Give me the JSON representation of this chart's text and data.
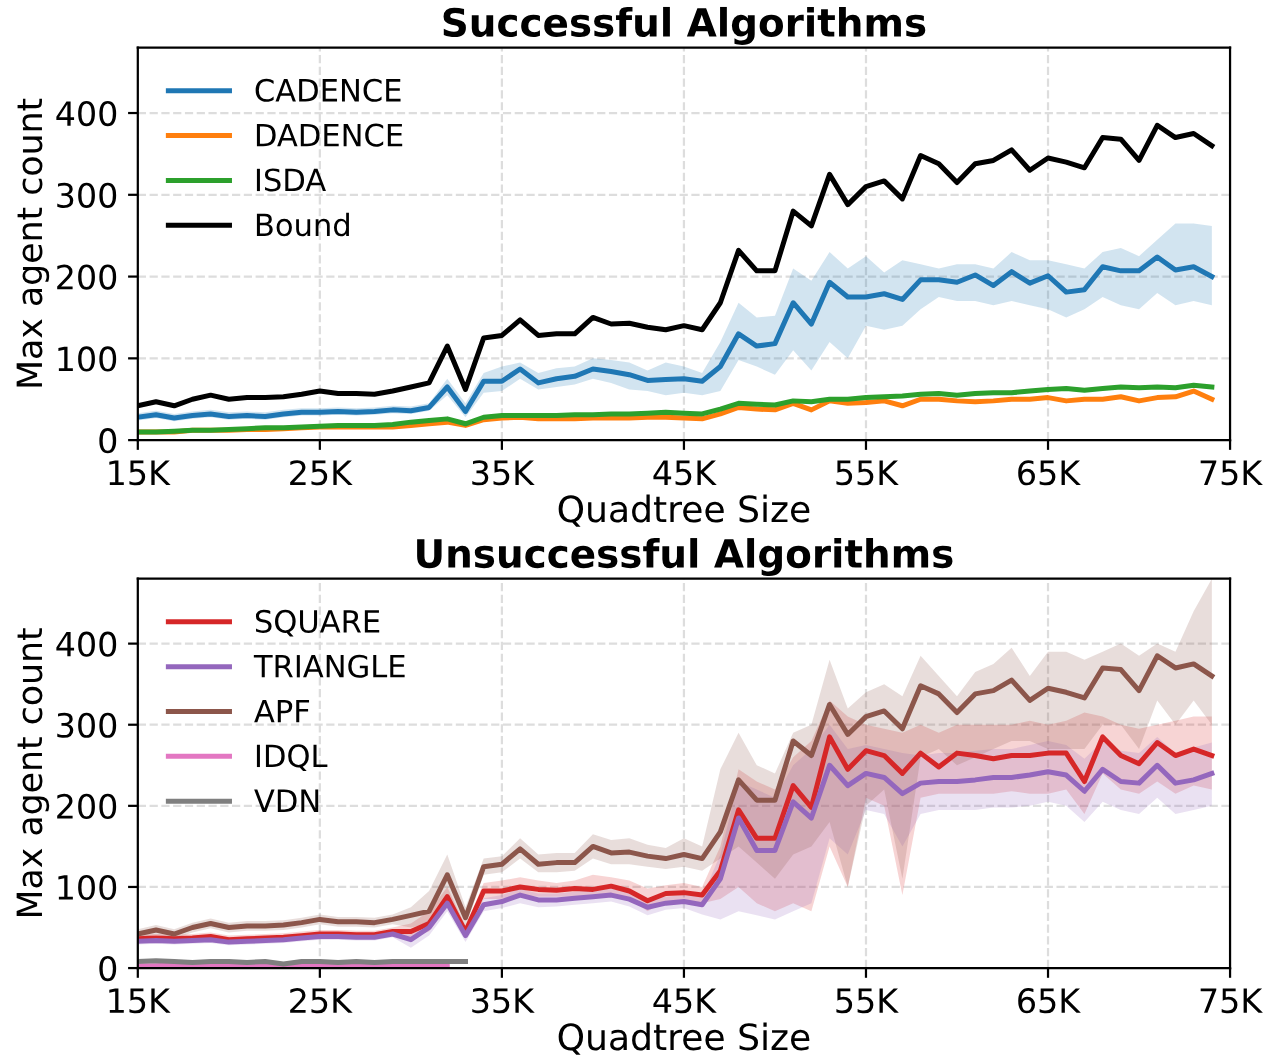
{
  "chart_data": [
    {
      "type": "line",
      "title": "Successful Algorithms",
      "xlabel": "Quadtree Size",
      "ylabel": "Max agent count",
      "x": [
        15000,
        16000,
        17000,
        18000,
        19000,
        20000,
        21000,
        22000,
        23000,
        24000,
        25000,
        26000,
        27000,
        28000,
        29000,
        30000,
        31000,
        32000,
        33000,
        34000,
        35000,
        36000,
        37000,
        38000,
        39000,
        40000,
        41000,
        42000,
        43000,
        44000,
        45000,
        46000,
        47000,
        48000,
        49000,
        50000,
        51000,
        52000,
        53000,
        54000,
        55000,
        56000,
        57000,
        58000,
        59000,
        60000,
        61000,
        62000,
        63000,
        64000,
        65000,
        66000,
        67000,
        68000,
        69000,
        70000,
        71000,
        72000,
        73000,
        74000
      ],
      "xlim": [
        15000,
        75000
      ],
      "xticks": [
        {
          "value": 15000,
          "label": "15K"
        },
        {
          "value": 25000,
          "label": "25K"
        },
        {
          "value": 35000,
          "label": "35K"
        },
        {
          "value": 45000,
          "label": "45K"
        },
        {
          "value": 55000,
          "label": "55K"
        },
        {
          "value": 65000,
          "label": "65K"
        },
        {
          "value": 75000,
          "label": "75K"
        }
      ],
      "ylim": [
        0,
        480
      ],
      "yticks": [
        0,
        100,
        200,
        300,
        400
      ],
      "grid": true,
      "legend": "top left",
      "line_style": "solid",
      "marker": "none",
      "series": [
        {
          "name": "CADENCE",
          "color": "#1f77b4",
          "values": [
            28,
            31,
            27,
            30,
            32,
            29,
            30,
            29,
            32,
            34,
            34,
            35,
            34,
            35,
            37,
            36,
            40,
            65,
            35,
            72,
            72,
            87,
            70,
            75,
            78,
            87,
            84,
            80,
            73,
            74,
            75,
            72,
            90,
            130,
            115,
            118,
            168,
            142,
            193,
            175,
            175,
            179,
            172,
            196,
            196,
            193,
            202,
            189,
            206,
            192,
            201,
            181,
            184,
            212,
            207,
            207,
            224,
            208,
            212,
            200
          ],
          "lower": [
            24,
            27,
            23,
            26,
            28,
            25,
            26,
            25,
            28,
            30,
            30,
            31,
            30,
            31,
            33,
            32,
            36,
            55,
            28,
            58,
            60,
            75,
            62,
            65,
            68,
            75,
            70,
            62,
            60,
            55,
            58,
            55,
            60,
            98,
            90,
            80,
            110,
            85,
            120,
            100,
            140,
            135,
            140,
            160,
            175,
            170,
            170,
            165,
            170,
            165,
            160,
            150,
            160,
            175,
            165,
            160,
            180,
            165,
            170,
            165
          ],
          "upper": [
            33,
            36,
            32,
            35,
            37,
            34,
            35,
            34,
            37,
            39,
            39,
            40,
            39,
            40,
            42,
            41,
            45,
            75,
            45,
            82,
            90,
            95,
            82,
            88,
            90,
            100,
            98,
            95,
            85,
            95,
            90,
            82,
            120,
            168,
            150,
            152,
            210,
            195,
            230,
            210,
            225,
            205,
            220,
            215,
            210,
            215,
            215,
            210,
            230,
            220,
            220,
            215,
            210,
            230,
            235,
            225,
            245,
            265,
            265,
            262
          ]
        },
        {
          "name": "DADENCE",
          "color": "#ff7f0e",
          "values": [
            10,
            10,
            10,
            12,
            12,
            12,
            13,
            13,
            14,
            15,
            16,
            16,
            16,
            16,
            16,
            18,
            20,
            22,
            18,
            25,
            27,
            28,
            26,
            26,
            26,
            27,
            27,
            27,
            28,
            28,
            27,
            26,
            32,
            40,
            38,
            37,
            45,
            37,
            48,
            45,
            46,
            48,
            42,
            50,
            50,
            48,
            47,
            48,
            50,
            50,
            52,
            48,
            50,
            50,
            53,
            48,
            52,
            53,
            60,
            50
          ]
        },
        {
          "name": "ISDA",
          "color": "#2ca02c",
          "values": [
            10,
            10,
            11,
            12,
            12,
            13,
            14,
            15,
            15,
            16,
            17,
            18,
            18,
            18,
            19,
            22,
            24,
            26,
            20,
            28,
            30,
            30,
            30,
            30,
            31,
            31,
            32,
            32,
            33,
            34,
            33,
            32,
            38,
            45,
            44,
            43,
            48,
            47,
            50,
            50,
            52,
            53,
            54,
            56,
            57,
            55,
            57,
            58,
            58,
            60,
            62,
            63,
            61,
            63,
            65,
            64,
            65,
            64,
            67,
            65
          ]
        },
        {
          "name": "Bound",
          "color": "#000000",
          "values": [
            42,
            47,
            42,
            50,
            55,
            50,
            52,
            52,
            53,
            56,
            60,
            57,
            57,
            56,
            60,
            65,
            70,
            115,
            62,
            125,
            128,
            147,
            128,
            130,
            130,
            150,
            142,
            143,
            138,
            135,
            140,
            135,
            168,
            232,
            207,
            207,
            280,
            262,
            325,
            288,
            310,
            317,
            295,
            348,
            338,
            315,
            338,
            342,
            355,
            330,
            345,
            340,
            333,
            370,
            368,
            342,
            385,
            370,
            375,
            360
          ]
        }
      ]
    },
    {
      "type": "line",
      "title": "Unsuccessful Algorithms",
      "xlabel": "Quadtree Size",
      "ylabel": "Max agent count",
      "x": [
        15000,
        16000,
        17000,
        18000,
        19000,
        20000,
        21000,
        22000,
        23000,
        24000,
        25000,
        26000,
        27000,
        28000,
        29000,
        30000,
        31000,
        32000,
        33000,
        34000,
        35000,
        36000,
        37000,
        38000,
        39000,
        40000,
        41000,
        42000,
        43000,
        44000,
        45000,
        46000,
        47000,
        48000,
        49000,
        50000,
        51000,
        52000,
        53000,
        54000,
        55000,
        56000,
        57000,
        58000,
        59000,
        60000,
        61000,
        62000,
        63000,
        64000,
        65000,
        66000,
        67000,
        68000,
        69000,
        70000,
        71000,
        72000,
        73000,
        74000
      ],
      "xlim": [
        15000,
        75000
      ],
      "xticks": [
        {
          "value": 15000,
          "label": "15K"
        },
        {
          "value": 25000,
          "label": "25K"
        },
        {
          "value": 35000,
          "label": "35K"
        },
        {
          "value": 45000,
          "label": "45K"
        },
        {
          "value": 55000,
          "label": "55K"
        },
        {
          "value": 65000,
          "label": "65K"
        },
        {
          "value": 75000,
          "label": "75K"
        }
      ],
      "ylim": [
        0,
        480
      ],
      "yticks": [
        0,
        100,
        200,
        300,
        400
      ],
      "grid": true,
      "legend": "top left",
      "line_style": "solid",
      "marker": "none",
      "series": [
        {
          "name": "SQUARE",
          "color": "#d62728",
          "values": [
            36,
            37,
            36,
            37,
            39,
            35,
            36,
            37,
            38,
            40,
            42,
            42,
            41,
            41,
            45,
            45,
            55,
            88,
            45,
            95,
            95,
            100,
            97,
            96,
            98,
            97,
            101,
            95,
            83,
            92,
            93,
            90,
            120,
            195,
            160,
            160,
            225,
            198,
            285,
            245,
            268,
            262,
            240,
            265,
            248,
            265,
            262,
            258,
            262,
            262,
            265,
            265,
            230,
            285,
            262,
            252,
            278,
            262,
            270,
            262
          ],
          "lower": [
            31,
            32,
            31,
            32,
            34,
            30,
            31,
            32,
            33,
            35,
            37,
            37,
            36,
            36,
            40,
            38,
            45,
            75,
            38,
            85,
            85,
            90,
            88,
            88,
            88,
            88,
            90,
            85,
            70,
            82,
            82,
            80,
            85,
            100,
            80,
            70,
            80,
            70,
            150,
            100,
            210,
            200,
            90,
            210,
            215,
            215,
            215,
            215,
            218,
            215,
            215,
            220,
            190,
            240,
            220,
            215,
            230,
            215,
            225,
            220
          ],
          "upper": [
            41,
            42,
            41,
            42,
            44,
            40,
            41,
            42,
            43,
            45,
            47,
            47,
            46,
            46,
            50,
            55,
            70,
            100,
            52,
            105,
            108,
            112,
            108,
            105,
            108,
            115,
            112,
            108,
            98,
            102,
            105,
            100,
            150,
            245,
            230,
            220,
            260,
            280,
            330,
            310,
            300,
            295,
            290,
            300,
            290,
            300,
            300,
            300,
            300,
            305,
            300,
            305,
            315,
            310,
            300,
            295,
            300,
            305,
            310,
            310
          ]
        },
        {
          "name": "TRIANGLE",
          "color": "#9467bd",
          "values": [
            33,
            34,
            33,
            34,
            35,
            32,
            33,
            34,
            35,
            37,
            39,
            39,
            38,
            38,
            42,
            35,
            50,
            80,
            40,
            78,
            82,
            90,
            84,
            84,
            86,
            88,
            90,
            85,
            75,
            80,
            82,
            78,
            110,
            185,
            145,
            145,
            205,
            185,
            250,
            225,
            240,
            235,
            215,
            228,
            230,
            230,
            232,
            235,
            235,
            238,
            242,
            238,
            218,
            245,
            230,
            228,
            250,
            228,
            232,
            240
          ],
          "lower": [
            29,
            30,
            29,
            30,
            31,
            28,
            29,
            30,
            31,
            33,
            35,
            35,
            34,
            34,
            38,
            25,
            40,
            70,
            32,
            70,
            74,
            80,
            75,
            76,
            78,
            80,
            82,
            76,
            65,
            72,
            74,
            66,
            60,
            70,
            65,
            60,
            70,
            80,
            160,
            140,
            195,
            190,
            150,
            190,
            195,
            195,
            195,
            198,
            198,
            200,
            205,
            200,
            180,
            205,
            195,
            190,
            210,
            190,
            195,
            200
          ],
          "upper": [
            37,
            38,
            37,
            38,
            39,
            36,
            37,
            38,
            39,
            41,
            43,
            43,
            42,
            42,
            46,
            45,
            60,
            90,
            48,
            86,
            90,
            98,
            92,
            92,
            94,
            96,
            98,
            94,
            85,
            88,
            90,
            88,
            140,
            230,
            220,
            210,
            250,
            270,
            300,
            270,
            275,
            270,
            265,
            262,
            265,
            265,
            268,
            270,
            270,
            275,
            280,
            275,
            258,
            280,
            268,
            265,
            285,
            265,
            272,
            278
          ]
        },
        {
          "name": "APF",
          "color": "#8c564b",
          "values": [
            42,
            47,
            42,
            50,
            55,
            50,
            52,
            52,
            53,
            56,
            60,
            57,
            57,
            56,
            60,
            65,
            70,
            115,
            62,
            125,
            128,
            147,
            128,
            130,
            130,
            150,
            142,
            143,
            138,
            135,
            140,
            135,
            168,
            232,
            207,
            207,
            280,
            262,
            325,
            288,
            310,
            317,
            295,
            348,
            338,
            315,
            338,
            342,
            355,
            330,
            345,
            340,
            333,
            370,
            368,
            342,
            385,
            370,
            375,
            360
          ],
          "lower": [
            36,
            41,
            36,
            44,
            49,
            44,
            46,
            46,
            47,
            50,
            54,
            51,
            51,
            50,
            54,
            50,
            55,
            80,
            50,
            115,
            118,
            135,
            118,
            118,
            120,
            135,
            128,
            128,
            125,
            122,
            125,
            120,
            135,
            150,
            130,
            110,
            140,
            150,
            180,
            100,
            200,
            220,
            110,
            260,
            270,
            250,
            260,
            270,
            280,
            280,
            270,
            270,
            270,
            300,
            300,
            270,
            330,
            300,
            330,
            300
          ],
          "upper": [
            48,
            53,
            48,
            56,
            61,
            56,
            58,
            58,
            59,
            62,
            66,
            63,
            63,
            62,
            66,
            75,
            95,
            140,
            75,
            135,
            138,
            160,
            140,
            142,
            142,
            165,
            158,
            160,
            152,
            148,
            160,
            150,
            245,
            290,
            250,
            240,
            290,
            300,
            380,
            320,
            340,
            350,
            335,
            385,
            360,
            335,
            365,
            375,
            395,
            360,
            390,
            390,
            380,
            390,
            400,
            385,
            400,
            390,
            440,
            480
          ]
        },
        {
          "name": "IDQL",
          "color": "#e377c2",
          "x": [
            15000,
            16000,
            17000,
            18000,
            19000,
            20000,
            21000,
            22000,
            23000,
            24000,
            25000,
            26000,
            27000,
            28000,
            29000,
            30000,
            31000,
            32000
          ],
          "values": [
            3,
            3,
            4,
            3,
            3,
            4,
            3,
            3,
            4,
            3,
            3,
            4,
            3,
            3,
            4,
            4,
            4,
            4
          ]
        },
        {
          "name": "VDN",
          "color": "#7f7f7f",
          "x": [
            15000,
            16000,
            17000,
            18000,
            19000,
            20000,
            21000,
            22000,
            23000,
            24000,
            25000,
            26000,
            27000,
            28000,
            29000,
            30000,
            31000,
            32000,
            33000
          ],
          "values": [
            8,
            9,
            8,
            7,
            8,
            8,
            7,
            8,
            5,
            8,
            8,
            7,
            8,
            7,
            8,
            8,
            8,
            8,
            8
          ]
        }
      ]
    }
  ]
}
